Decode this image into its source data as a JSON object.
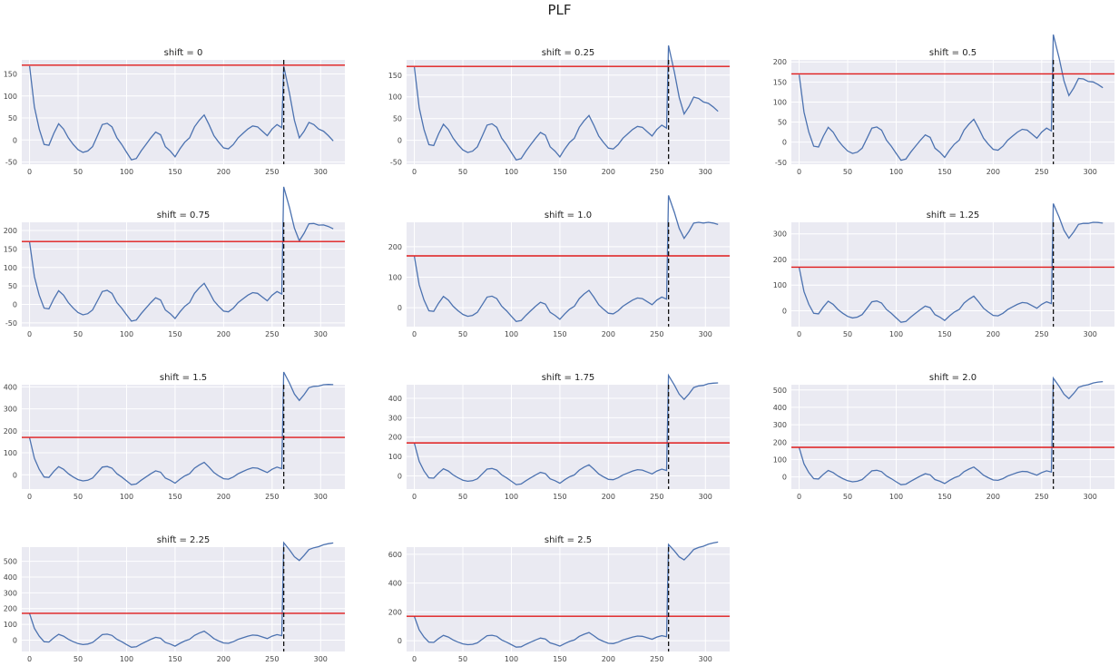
{
  "figure_title": "PLF",
  "colors": {
    "series": "#4c72b0",
    "horizontal_line": "#e01b1b",
    "vertical_line": "#111111",
    "plot_background": "#eaeaf2",
    "grid": "#ffffff"
  },
  "chart_data": [
    {
      "type": "line",
      "title": "shift = 0",
      "shift": 0,
      "xlim": [
        -8,
        325
      ],
      "ylim": [
        -55,
        182
      ],
      "xticks": [
        0,
        50,
        100,
        150,
        200,
        250,
        300
      ],
      "yticks": [
        -50,
        0,
        50,
        100,
        150
      ],
      "hline_y": 170,
      "vline_x": 262,
      "grid": true
    },
    {
      "type": "line",
      "title": "shift = 0.25",
      "shift": 0.25,
      "xlim": [
        -8,
        325
      ],
      "ylim": [
        -55,
        185
      ],
      "xticks": [
        0,
        50,
        100,
        150,
        200,
        250,
        300
      ],
      "yticks": [
        -50,
        0,
        50,
        100,
        150
      ],
      "hline_y": 170,
      "vline_x": 262,
      "grid": true
    },
    {
      "type": "line",
      "title": "shift = 0.5",
      "shift": 0.5,
      "xlim": [
        -8,
        325
      ],
      "ylim": [
        -55,
        205
      ],
      "xticks": [
        0,
        50,
        100,
        150,
        200,
        250,
        300
      ],
      "yticks": [
        -50,
        0,
        50,
        100,
        150,
        200
      ],
      "hline_y": 170,
      "vline_x": 262,
      "grid": true
    },
    {
      "type": "line",
      "title": "shift = 0.75",
      "shift": 0.75,
      "xlim": [
        -8,
        325
      ],
      "ylim": [
        -60,
        222
      ],
      "xticks": [
        0,
        50,
        100,
        150,
        200,
        250,
        300
      ],
      "yticks": [
        -50,
        0,
        50,
        100,
        150,
        200
      ],
      "hline_y": 170,
      "vline_x": 262,
      "grid": true
    },
    {
      "type": "line",
      "title": "shift = 1.0",
      "shift": 1.0,
      "xlim": [
        -8,
        325
      ],
      "ylim": [
        -62,
        280
      ],
      "xticks": [
        0,
        50,
        100,
        150,
        200,
        250,
        300
      ],
      "yticks": [
        0,
        100,
        200
      ],
      "hline_y": 170,
      "vline_x": 262,
      "grid": true
    },
    {
      "type": "line",
      "title": "shift = 1.25",
      "shift": 1.25,
      "xlim": [
        -8,
        325
      ],
      "ylim": [
        -62,
        345
      ],
      "xticks": [
        0,
        50,
        100,
        150,
        200,
        250,
        300
      ],
      "yticks": [
        0,
        100,
        200,
        300
      ],
      "hline_y": 170,
      "vline_x": 262,
      "grid": true
    },
    {
      "type": "line",
      "title": "shift = 1.5",
      "shift": 1.5,
      "xlim": [
        -8,
        325
      ],
      "ylim": [
        -65,
        410
      ],
      "xticks": [
        0,
        50,
        100,
        150,
        200,
        250,
        300
      ],
      "yticks": [
        0,
        100,
        200,
        300,
        400
      ],
      "hline_y": 170,
      "vline_x": 262,
      "grid": true
    },
    {
      "type": "line",
      "title": "shift = 1.75",
      "shift": 1.75,
      "xlim": [
        -8,
        325
      ],
      "ylim": [
        -68,
        470
      ],
      "xticks": [
        0,
        50,
        100,
        150,
        200,
        250,
        300
      ],
      "yticks": [
        0,
        100,
        200,
        300,
        400
      ],
      "hline_y": 170,
      "vline_x": 262,
      "grid": true
    },
    {
      "type": "line",
      "title": "shift = 2.0",
      "shift": 2.0,
      "xlim": [
        -8,
        325
      ],
      "ylim": [
        -70,
        530
      ],
      "xticks": [
        0,
        50,
        100,
        150,
        200,
        250,
        300
      ],
      "yticks": [
        0,
        100,
        200,
        300,
        400,
        500
      ],
      "hline_y": 170,
      "vline_x": 262,
      "grid": true
    },
    {
      "type": "line",
      "title": "shift = 2.25",
      "shift": 2.25,
      "xlim": [
        -8,
        325
      ],
      "ylim": [
        -72,
        590
      ],
      "xticks": [
        0,
        50,
        100,
        150,
        200,
        250,
        300
      ],
      "yticks": [
        0,
        100,
        200,
        300,
        400,
        500
      ],
      "hline_y": 170,
      "vline_x": 262,
      "grid": true
    },
    {
      "type": "line",
      "title": "shift = 2.5",
      "shift": 2.5,
      "xlim": [
        -8,
        325
      ],
      "ylim": [
        -75,
        650
      ],
      "xticks": [
        0,
        50,
        100,
        150,
        200,
        250,
        300
      ],
      "yticks": [
        0,
        200,
        400,
        600
      ],
      "hline_y": 170,
      "vline_x": 262,
      "grid": true
    }
  ],
  "base_series": {
    "x": [
      0,
      5,
      10,
      15,
      20,
      25,
      30,
      35,
      40,
      45,
      50,
      55,
      60,
      65,
      70,
      75,
      80,
      85,
      90,
      95,
      100,
      105,
      110,
      115,
      120,
      125,
      130,
      135,
      140,
      145,
      150,
      155,
      160,
      165,
      170,
      175,
      180,
      185,
      190,
      195,
      200,
      205,
      210,
      215,
      220,
      225,
      230,
      235,
      240,
      245,
      250,
      255,
      260
    ],
    "y": [
      168,
      75,
      25,
      -10,
      -12,
      15,
      37,
      25,
      5,
      -10,
      -22,
      -28,
      -25,
      -15,
      10,
      35,
      38,
      30,
      5,
      -10,
      -28,
      -45,
      -42,
      -25,
      -10,
      5,
      18,
      12,
      -15,
      -25,
      -38,
      -20,
      -5,
      5,
      30,
      45,
      57,
      35,
      10,
      -5,
      -18,
      -20,
      -10,
      5,
      15,
      25,
      32,
      30,
      20,
      10,
      25,
      35,
      28
    ]
  },
  "shifted_tail": {
    "x": [
      262,
      268,
      273,
      278,
      283,
      288,
      293,
      298,
      303,
      308,
      313
    ],
    "y": [
      168,
      105,
      45,
      5,
      20,
      40,
      35,
      25,
      20,
      10,
      -2
    ],
    "ramp_per_shift": 200,
    "slope_per_shift": 75
  }
}
